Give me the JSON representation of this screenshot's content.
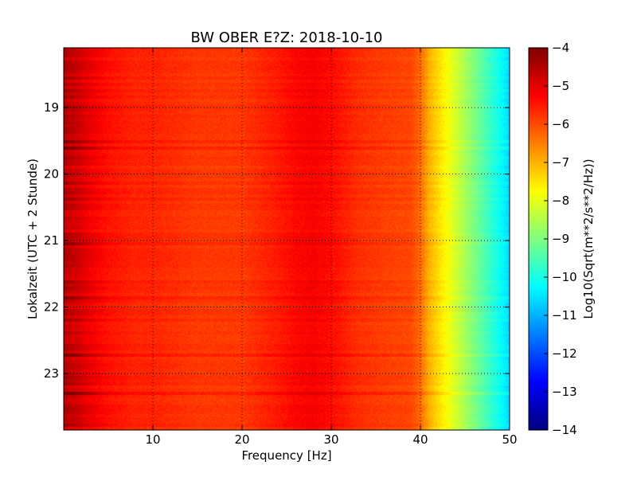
{
  "chart_data": {
    "type": "heatmap",
    "title": "BW OBER E?Z: 2018-10-10",
    "xlabel": "Frequency [Hz]",
    "ylabel": "Lokalzeit (UTC + 2 Stunde)",
    "xlim": [
      0,
      50
    ],
    "ylim": [
      18.1,
      23.85
    ],
    "y_inverted": true,
    "x_ticks": [
      10,
      20,
      30,
      40,
      50
    ],
    "x_tick_labels": [
      "10",
      "20",
      "30",
      "40",
      "50"
    ],
    "y_ticks": [
      19,
      20,
      21,
      22,
      23
    ],
    "y_tick_labels": [
      "19",
      "20",
      "21",
      "22",
      "23"
    ],
    "grid": true,
    "grid_style": "dotted",
    "colormap": "jet",
    "colorbar": {
      "label": "Log10(Sqrt(m**2/s**2/Hz))",
      "range": [
        -14,
        -4
      ],
      "ticks": [
        -4,
        -5,
        -6,
        -7,
        -8,
        -9,
        -10,
        -11,
        -12,
        -13,
        -14
      ],
      "tick_labels": [
        "−4",
        "−5",
        "−6",
        "−7",
        "−8",
        "−9",
        "−10",
        "−11",
        "−12",
        "−13",
        "−14"
      ]
    },
    "spectral_profile": {
      "frequency_hz": [
        0,
        1,
        2,
        3,
        5,
        8,
        10,
        15,
        20,
        24,
        26,
        28,
        30,
        33,
        36,
        39,
        40,
        41,
        42,
        43,
        44,
        45,
        46,
        47,
        48,
        49,
        50
      ],
      "value": [
        -4.6,
        -4.7,
        -4.9,
        -5.1,
        -5.4,
        -5.6,
        -5.6,
        -5.8,
        -5.8,
        -5.5,
        -5.3,
        -5.2,
        -5.35,
        -5.7,
        -5.85,
        -5.95,
        -6.3,
        -7.0,
        -7.4,
        -7.8,
        -8.2,
        -8.6,
        -9.0,
        -9.4,
        -9.8,
        -10.2,
        -10.6
      ]
    }
  }
}
